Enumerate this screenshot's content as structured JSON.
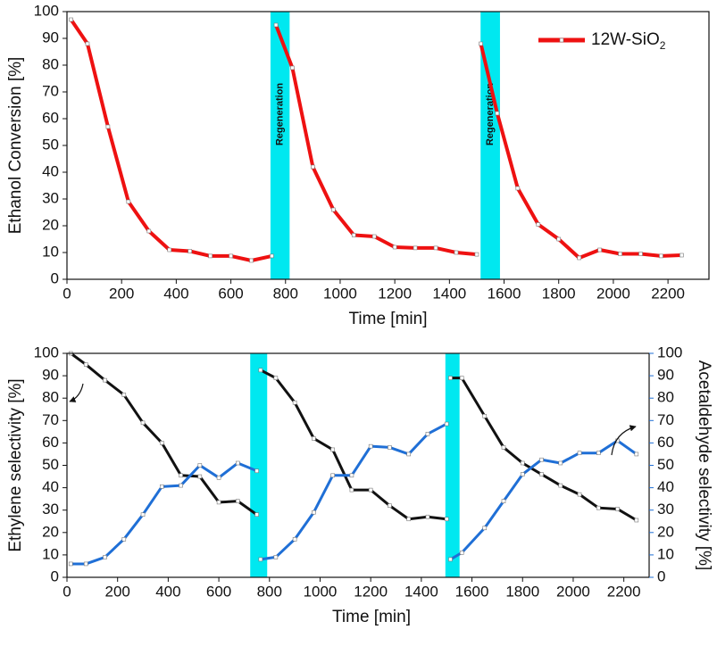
{
  "chart_data": [
    {
      "type": "line",
      "ylabel": "Ethanol Conversion [%]",
      "xlabel": "Time [min]",
      "xlim": [
        0,
        2350
      ],
      "xticks": [
        0,
        200,
        400,
        600,
        800,
        1000,
        1200,
        1400,
        1600,
        1800,
        2000,
        2200
      ],
      "ylim": [
        0,
        100
      ],
      "yticks": [
        0,
        10,
        20,
        30,
        40,
        50,
        60,
        70,
        80,
        90,
        100
      ],
      "regions": [
        {
          "start": 745,
          "end": 815,
          "label": "Regeneration",
          "color": "#00e8f0"
        },
        {
          "start": 1514,
          "end": 1585,
          "label": "Regeneration",
          "color": "#00e8f0"
        }
      ],
      "legend": "top-right",
      "x": [
        15,
        75,
        150,
        225,
        300,
        375,
        450,
        525,
        600,
        675,
        750,
        null,
        765,
        825,
        900,
        975,
        1050,
        1125,
        1200,
        1275,
        1350,
        1425,
        1500,
        null,
        1515,
        1575,
        1650,
        1725,
        1800,
        1875,
        1950,
        2025,
        2100,
        2175,
        2250
      ],
      "series": [
        {
          "name": "12W-SiO2",
          "color": "#ee1111",
          "values": [
            97,
            88,
            57,
            29,
            18,
            11,
            10.5,
            8.7,
            8.7,
            7,
            8.7,
            null,
            95,
            79,
            42,
            26,
            16.5,
            16,
            12,
            11.7,
            11.7,
            10,
            9.3,
            null,
            88,
            62,
            34,
            20.5,
            15,
            8,
            11,
            9.5,
            9.5,
            8.7,
            9
          ]
        }
      ]
    },
    {
      "type": "line",
      "ylabel": "Ethylene selectivity [%]",
      "y2label": "Acetaldehyde selectivity [%]",
      "xlabel": "Time [min]",
      "xlim": [
        0,
        2300
      ],
      "xticks": [
        0,
        200,
        400,
        600,
        800,
        1000,
        1200,
        1400,
        1600,
        1800,
        2000,
        2200
      ],
      "ylim": [
        0,
        100
      ],
      "yticks": [
        0,
        10,
        20,
        30,
        40,
        50,
        60,
        70,
        80,
        90,
        100
      ],
      "y2lim": [
        0,
        100
      ],
      "y2ticks": [
        0,
        10,
        20,
        30,
        40,
        50,
        60,
        70,
        80,
        90,
        100
      ],
      "regions": [
        {
          "start": 724,
          "end": 791,
          "color": "#00e8f0"
        },
        {
          "start": 1495,
          "end": 1551,
          "color": "#00e8f0"
        }
      ],
      "x": [
        15,
        75,
        150,
        225,
        300,
        375,
        450,
        525,
        600,
        675,
        750,
        null,
        765,
        825,
        900,
        975,
        1050,
        1125,
        1200,
        1275,
        1350,
        1425,
        1500,
        null,
        1515,
        1560,
        1650,
        1725,
        1800,
        1875,
        1950,
        2025,
        2100,
        2175,
        2250
      ],
      "series": [
        {
          "color": "#111111",
          "axis": "y",
          "values": [
            100,
            95,
            88,
            81.5,
            69,
            60,
            45.5,
            45,
            33.5,
            34,
            28,
            null,
            92.5,
            89,
            78,
            62,
            57,
            39,
            39,
            32,
            26,
            27,
            26,
            null,
            89,
            89,
            72,
            58,
            51,
            46,
            41,
            37,
            31,
            30.5,
            25.5
          ]
        },
        {
          "color": "#1f6fd6",
          "axis": "y2",
          "values": [
            6,
            6,
            9,
            17,
            28,
            40.5,
            41,
            50,
            44.5,
            51,
            47.5,
            null,
            8,
            9,
            17,
            29,
            45.5,
            45.5,
            58.5,
            58,
            55,
            64,
            68.5,
            null,
            8,
            11,
            22,
            34,
            46,
            52.5,
            51,
            55.5,
            55.5,
            61,
            55
          ]
        }
      ]
    }
  ]
}
